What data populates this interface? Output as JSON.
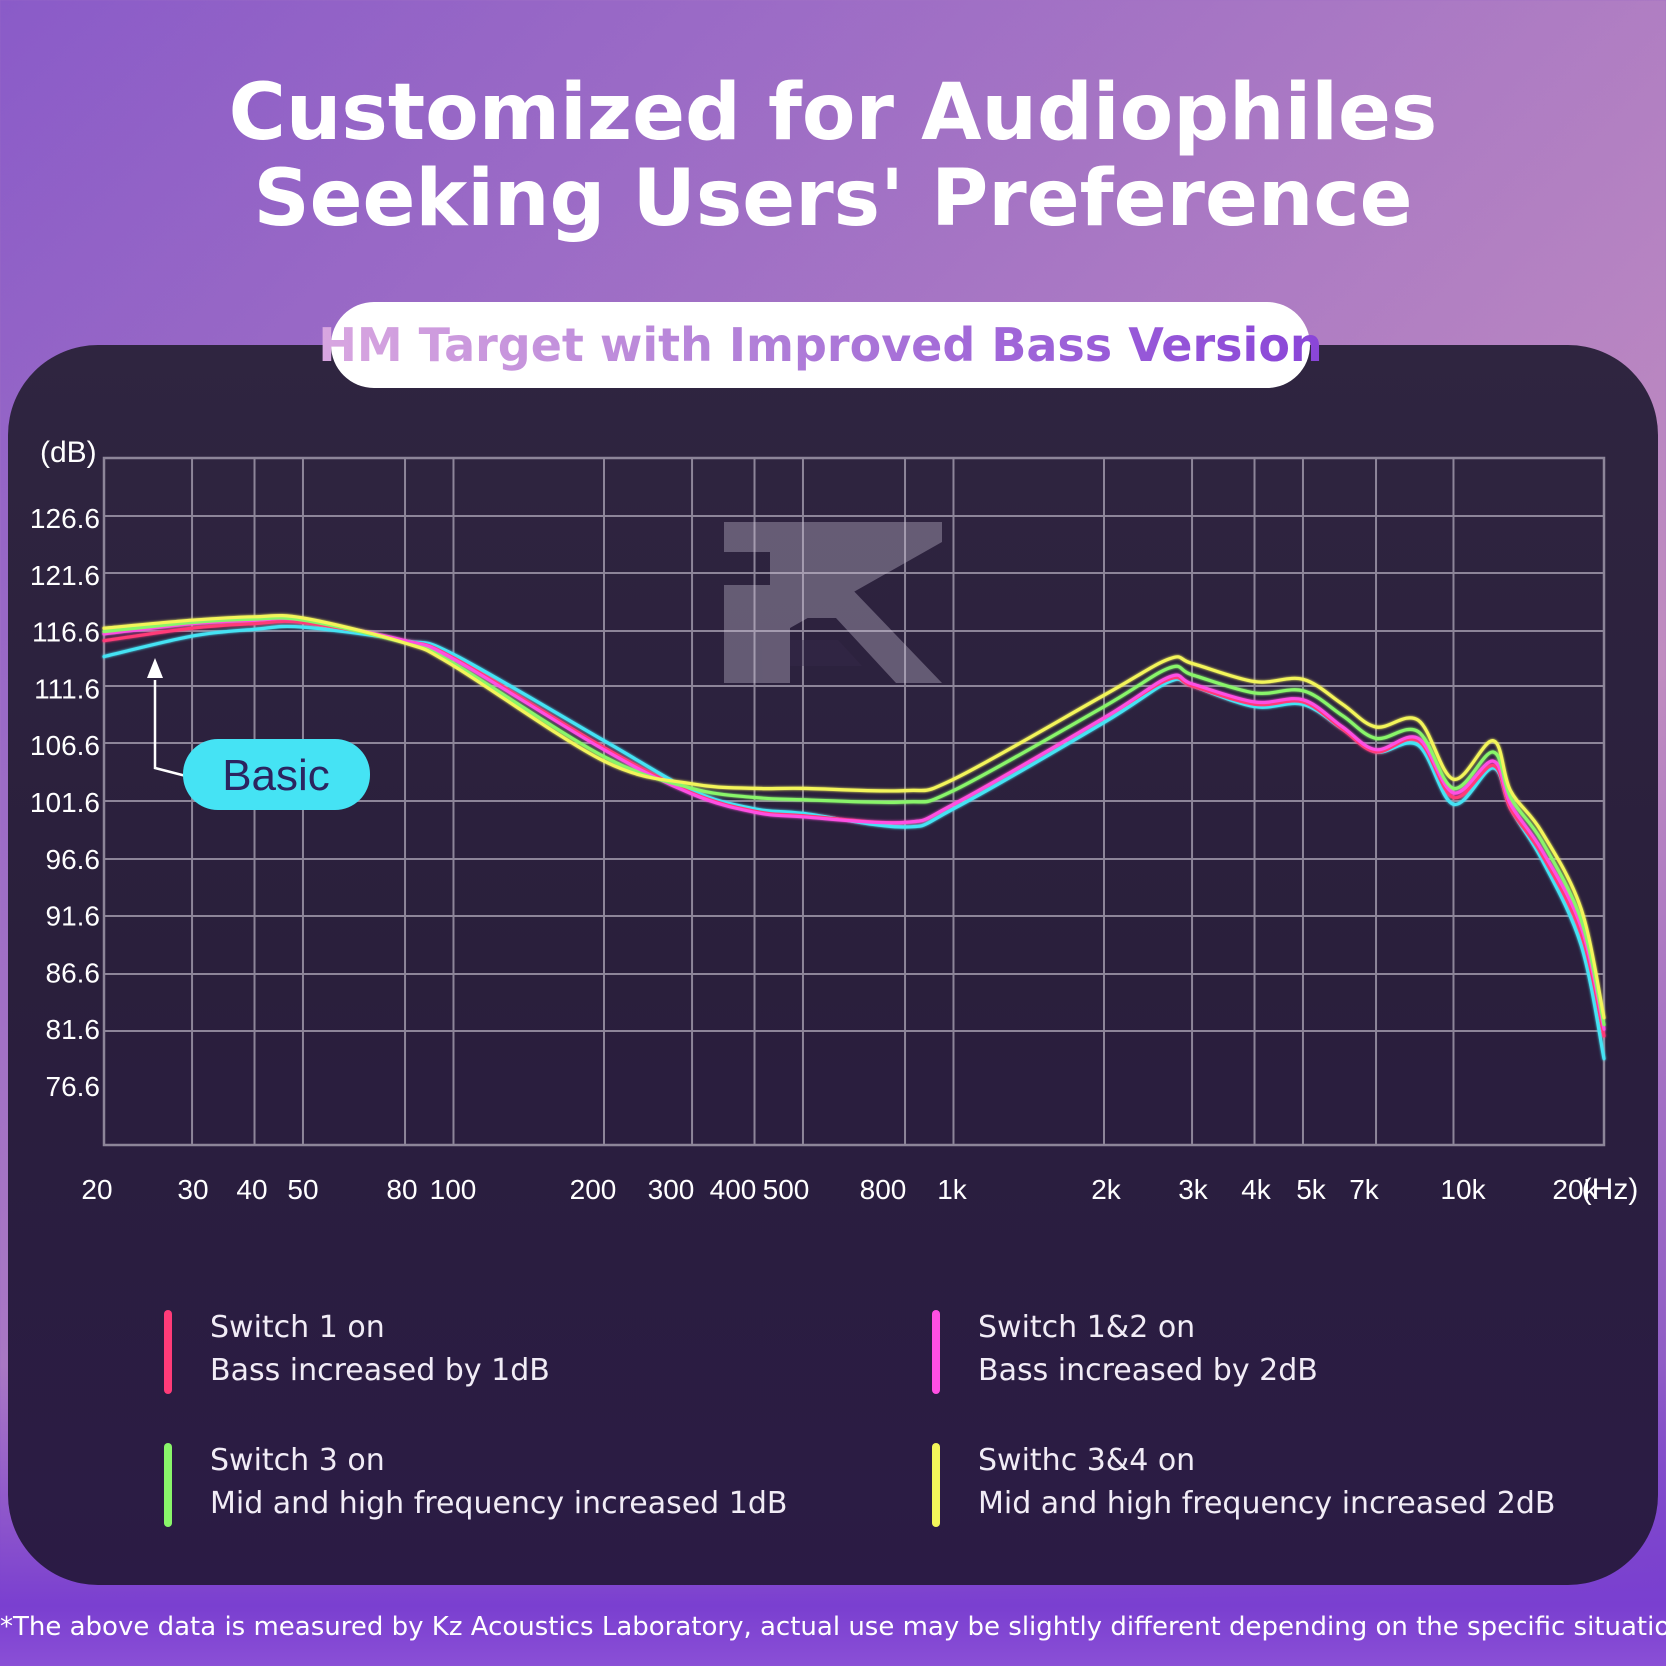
{
  "header": {
    "title_line1": "Customized for Audiophiles",
    "title_line2": "Seeking Users' Preference"
  },
  "subtitle": "HM Target with Improved Bass Version",
  "callout": "Basic",
  "footnote": "*The above data is measured by Kz Acoustics Laboratory, actual use may be slightly different depending on the specific situation.",
  "colors": {
    "basic": "#45e3f4",
    "switch_1": "#ff3b78",
    "switch_1_2": "#ff4fe3",
    "switch_3": "#89f56a",
    "switch_3_4": "#f3f55a"
  },
  "legend": [
    {
      "line1": "Switch 1 on",
      "line2": "Bass increased by 1dB",
      "color": "#ff3b78"
    },
    {
      "line1": "Switch 1&2 on",
      "line2": "Bass increased by 2dB",
      "color": "#ff4fe3"
    },
    {
      "line1": "Switch 3 on",
      "line2": "Mid and high frequency increased 1dB",
      "color": "#89f56a"
    },
    {
      "line1": "Swithc 3&4 on",
      "line2": "Mid and high frequency increased 2dB",
      "color": "#f3f55a"
    }
  ],
  "chart_data": {
    "type": "line",
    "x_scale": "log",
    "ylabel": "(dB)",
    "xlabel": "(Hz)",
    "xlim": [
      20,
      20000
    ],
    "yticks": [
      126.6,
      121.6,
      116.6,
      111.6,
      106.6,
      101.6,
      96.6,
      91.6,
      86.6,
      81.6,
      76.6
    ],
    "xtick_labels": [
      "20",
      "30",
      "40",
      "50",
      "80",
      "100",
      "200",
      "300",
      "400",
      "500",
      "800",
      "1k",
      "2k",
      "3k",
      "4k",
      "5k",
      "7k",
      "10k",
      "20k"
    ],
    "x": [
      20,
      30,
      40,
      50,
      80,
      100,
      200,
      300,
      400,
      500,
      800,
      1000,
      2000,
      2700,
      3000,
      4000,
      5000,
      6000,
      7000,
      8500,
      10000,
      12000,
      13000,
      15000,
      18000,
      20000
    ],
    "series": [
      {
        "key": "basic",
        "values": [
          114.4,
          116.2,
          116.8,
          117.0,
          115.8,
          114.6,
          107.0,
          102.6,
          101.0,
          100.6,
          99.4,
          101.0,
          108.6,
          112.2,
          111.8,
          110.0,
          110.2,
          108.0,
          106.0,
          106.6,
          101.4,
          104.6,
          101.0,
          96.6,
          89.0,
          79.0
        ]
      },
      {
        "key": "switch_1",
        "values": [
          115.8,
          116.9,
          117.3,
          117.4,
          115.8,
          114.3,
          106.4,
          102.4,
          100.8,
          100.4,
          99.8,
          101.4,
          109.0,
          112.4,
          111.8,
          110.2,
          110.4,
          108.0,
          106.0,
          107.0,
          102.0,
          104.8,
          101.0,
          97.0,
          90.0,
          81.0
        ]
      },
      {
        "key": "switch_1_2",
        "values": [
          116.4,
          117.3,
          117.6,
          117.6,
          115.8,
          114.2,
          106.2,
          102.3,
          100.7,
          100.3,
          99.8,
          101.4,
          109.0,
          112.6,
          112.0,
          110.4,
          110.6,
          108.2,
          106.2,
          107.2,
          102.4,
          105.2,
          101.4,
          97.4,
          90.6,
          81.6
        ]
      },
      {
        "key": "switch_3",
        "values": [
          116.6,
          117.4,
          117.7,
          117.6,
          115.6,
          113.8,
          105.6,
          102.8,
          102.0,
          101.8,
          101.6,
          102.6,
          110.0,
          113.4,
          112.8,
          111.2,
          111.4,
          109.2,
          107.2,
          107.8,
          102.8,
          106.0,
          102.0,
          98.2,
          91.2,
          82.0
        ]
      },
      {
        "key": "switch_3_4",
        "values": [
          116.9,
          117.6,
          117.9,
          117.8,
          115.6,
          113.6,
          105.2,
          103.2,
          102.8,
          102.8,
          102.6,
          103.6,
          111.0,
          114.2,
          113.8,
          112.2,
          112.4,
          110.2,
          108.2,
          108.8,
          103.6,
          107.0,
          102.6,
          99.0,
          92.2,
          82.6
        ]
      }
    ]
  }
}
